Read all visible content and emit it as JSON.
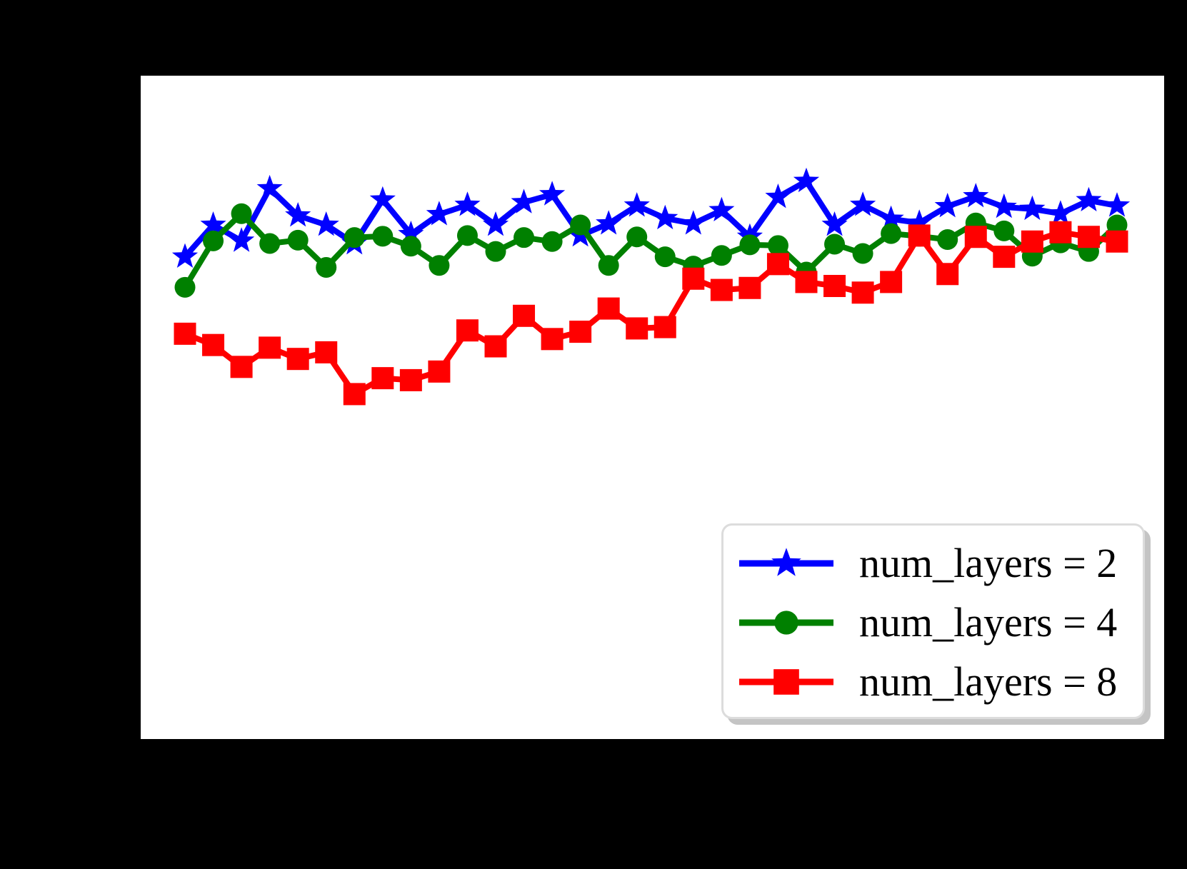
{
  "figure": {
    "background_color": "#000000",
    "plot_background_color": "#ffffff",
    "axis_text_visible": false
  },
  "chart_data": {
    "type": "line",
    "title": "",
    "xlabel": "",
    "ylabel": "",
    "grid": false,
    "legend_position": "lower right",
    "x_tick_labels_visible": false,
    "y_tick_labels_visible": false,
    "y_units": "fraction_of_plot_height_from_bottom",
    "x": [
      1,
      2,
      3,
      4,
      5,
      6,
      7,
      8,
      9,
      10,
      11,
      12,
      13,
      14,
      15,
      16,
      17,
      18,
      19,
      20,
      21,
      22,
      23,
      24,
      25,
      26,
      27,
      28,
      29,
      30,
      31,
      32,
      33,
      34
    ],
    "series": [
      {
        "name": "num_layers = 2",
        "color": "#0000ff",
        "marker": "star",
        "values": [
          0.727,
          0.775,
          0.751,
          0.83,
          0.789,
          0.775,
          0.747,
          0.813,
          0.761,
          0.791,
          0.805,
          0.775,
          0.809,
          0.821,
          0.759,
          0.777,
          0.804,
          0.785,
          0.777,
          0.797,
          0.757,
          0.817,
          0.841,
          0.775,
          0.805,
          0.784,
          0.778,
          0.803,
          0.818,
          0.802,
          0.799,
          0.792,
          0.812,
          0.804
        ]
      },
      {
        "name": "num_layers = 4",
        "color": "#008000",
        "marker": "circle",
        "values": [
          0.681,
          0.751,
          0.792,
          0.747,
          0.752,
          0.711,
          0.756,
          0.758,
          0.743,
          0.714,
          0.759,
          0.735,
          0.756,
          0.75,
          0.775,
          0.714,
          0.757,
          0.727,
          0.713,
          0.729,
          0.745,
          0.744,
          0.704,
          0.746,
          0.732,
          0.762,
          0.758,
          0.753,
          0.778,
          0.766,
          0.728,
          0.748,
          0.735,
          0.775
        ]
      },
      {
        "name": "num_layers = 8",
        "color": "#ff0000",
        "marker": "square",
        "values": [
          0.611,
          0.594,
          0.561,
          0.59,
          0.573,
          0.583,
          0.52,
          0.544,
          0.541,
          0.554,
          0.616,
          0.592,
          0.638,
          0.603,
          0.614,
          0.649,
          0.619,
          0.621,
          0.694,
          0.677,
          0.68,
          0.716,
          0.689,
          0.683,
          0.673,
          0.689,
          0.759,
          0.701,
          0.757,
          0.727,
          0.75,
          0.764,
          0.757,
          0.75
        ]
      }
    ]
  }
}
